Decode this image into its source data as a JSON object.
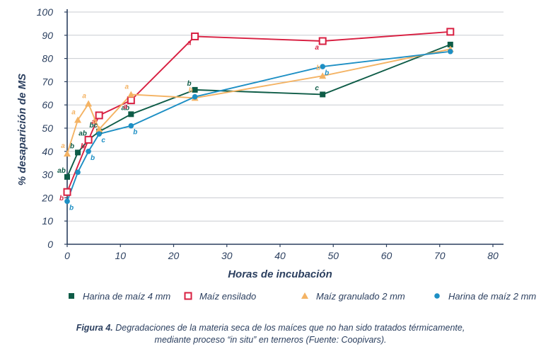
{
  "chart_data": {
    "type": "line",
    "xlabel": "Horas de incubación",
    "ylabel": "% desaparición de MS",
    "xlim": [
      0,
      80
    ],
    "ylim": [
      0,
      100
    ],
    "xticks": [
      0,
      10,
      20,
      30,
      40,
      50,
      60,
      70,
      80
    ],
    "yticks": [
      0,
      10,
      20,
      30,
      40,
      50,
      60,
      70,
      80,
      90,
      100
    ],
    "grid": "horizontal",
    "legend_position": "bottom",
    "series": [
      {
        "name": "Harina de maíz 4 mm",
        "color": "#0e5c47",
        "marker": "square",
        "points": [
          {
            "x": 0,
            "y": 29,
            "label": "ab"
          },
          {
            "x": 2,
            "y": 39.5,
            "label": "b"
          },
          {
            "x": 4,
            "y": 45,
            "label": "ab"
          },
          {
            "x": 6,
            "y": 48.5,
            "label": "bc"
          },
          {
            "x": 12,
            "y": 56,
            "label": "ab"
          },
          {
            "x": 24,
            "y": 66.5,
            "label": "b"
          },
          {
            "x": 48,
            "y": 64.5,
            "label": "c"
          },
          {
            "x": 72,
            "y": 86,
            "label": ""
          }
        ]
      },
      {
        "name": "Maíz ensilado",
        "color": "#d81f41",
        "marker": "open-square",
        "points": [
          {
            "x": 0,
            "y": 22.5,
            "label": "b"
          },
          {
            "x": 4,
            "y": 45,
            "label": "b"
          },
          {
            "x": 6,
            "y": 55.5,
            "label": "a"
          },
          {
            "x": 12,
            "y": 62,
            "label": "a"
          },
          {
            "x": 24,
            "y": 89.5,
            "label": "a"
          },
          {
            "x": 48,
            "y": 87.5,
            "label": "a"
          },
          {
            "x": 72,
            "y": 91.5,
            "label": ""
          }
        ]
      },
      {
        "name": "Maíz granulado 2 mm",
        "color": "#f4b364",
        "marker": "triangle",
        "points": [
          {
            "x": 0,
            "y": 39,
            "label": "a"
          },
          {
            "x": 2,
            "y": 53.5,
            "label": "a"
          },
          {
            "x": 4,
            "y": 60.5,
            "label": "a"
          },
          {
            "x": 6,
            "y": 49.5,
            "label": "b"
          },
          {
            "x": 12,
            "y": 64.5,
            "label": "a"
          },
          {
            "x": 24,
            "y": 63,
            "label": "b"
          },
          {
            "x": 48,
            "y": 72.5,
            "label": "b"
          },
          {
            "x": 72,
            "y": 84,
            "label": ""
          }
        ]
      },
      {
        "name": "Harina de maíz 2 mm",
        "color": "#1d8fc4",
        "marker": "circle",
        "points": [
          {
            "x": 0,
            "y": 18.5,
            "label": "b"
          },
          {
            "x": 2,
            "y": 31,
            "label": ""
          },
          {
            "x": 4,
            "y": 40,
            "label": "b"
          },
          {
            "x": 6,
            "y": 47.5,
            "label": "c"
          },
          {
            "x": 12,
            "y": 51,
            "label": "b"
          },
          {
            "x": 24,
            "y": 63.5,
            "label": ""
          },
          {
            "x": 48,
            "y": 76.5,
            "label": "b"
          },
          {
            "x": 72,
            "y": 83,
            "label": ""
          }
        ]
      }
    ]
  },
  "caption": {
    "label": "Figura 4.",
    "line1": "Degradaciones de la materia seca de los maíces que no han sido tratados térmicamente,",
    "line2": "mediante proceso “in situ” en terneros (Fuente: Coopivars)."
  },
  "colors": {
    "axis_text": "#2b3f5f",
    "grid": "#c8ccd1"
  }
}
